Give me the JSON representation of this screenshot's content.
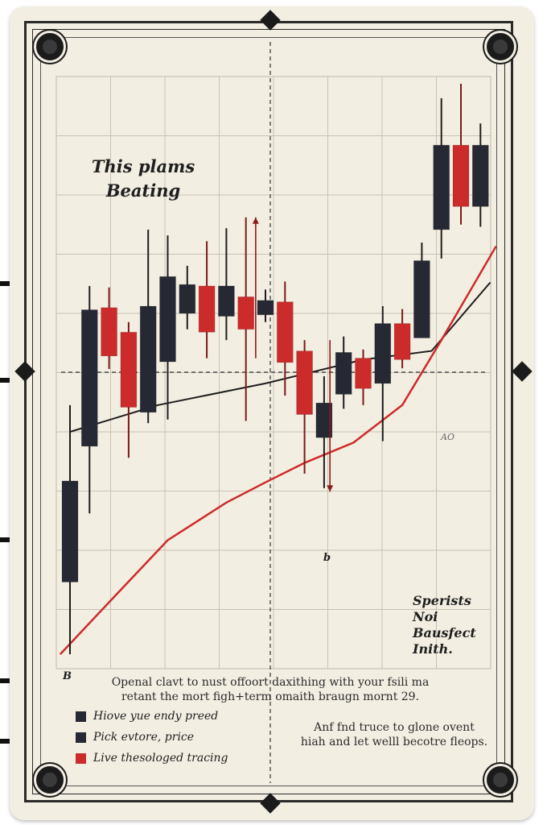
{
  "chart_data": {
    "type": "candlestick",
    "title_lines": [
      "This plams",
      "Beating"
    ],
    "candles": [
      {
        "open": 290,
        "close": 430,
        "high": 535,
        "low": 190,
        "color": "dark"
      },
      {
        "open": 478,
        "close": 667,
        "high": 700,
        "low": 385,
        "color": "dark"
      },
      {
        "open": 670,
        "close": 603,
        "high": 698,
        "low": 585,
        "color": "red"
      },
      {
        "open": 636,
        "close": 532,
        "high": 650,
        "low": 462,
        "color": "red"
      },
      {
        "open": 525,
        "close": 672,
        "high": 778,
        "low": 510,
        "color": "dark"
      },
      {
        "open": 595,
        "close": 713,
        "high": 770,
        "low": 515,
        "color": "dark"
      },
      {
        "open": 702,
        "close": 662,
        "high": 728,
        "low": 640,
        "color": "dark"
      },
      {
        "open": 700,
        "close": 636,
        "high": 762,
        "low": 600,
        "color": "red"
      },
      {
        "open": 658,
        "close": 700,
        "high": 780,
        "low": 625,
        "color": "dark"
      },
      {
        "open": 685,
        "close": 640,
        "high": 795,
        "low": 513,
        "color": "red"
      },
      {
        "open": 660,
        "close": 680,
        "high": 695,
        "low": 650,
        "color": "dark"
      },
      {
        "open": 678,
        "close": 594,
        "high": 706,
        "low": 548,
        "color": "red"
      },
      {
        "open": 610,
        "close": 522,
        "high": 625,
        "low": 440,
        "color": "red"
      },
      {
        "open": 490,
        "close": 538,
        "high": 575,
        "low": 420,
        "color": "dark"
      },
      {
        "open": 550,
        "close": 608,
        "high": 630,
        "low": 530,
        "color": "dark"
      },
      {
        "open": 600,
        "close": 558,
        "high": 612,
        "low": 535,
        "color": "red"
      },
      {
        "open": 565,
        "close": 648,
        "high": 672,
        "low": 485,
        "color": "dark"
      },
      {
        "open": 648,
        "close": 598,
        "high": 668,
        "low": 586,
        "color": "red"
      },
      {
        "open": 628,
        "close": 735,
        "high": 760,
        "low": 628,
        "color": "dark"
      },
      {
        "open": 778,
        "close": 895,
        "high": 960,
        "low": 738,
        "color": "dark"
      },
      {
        "open": 895,
        "close": 810,
        "high": 980,
        "low": 785,
        "color": "red"
      },
      {
        "open": 895,
        "close": 810,
        "high": 925,
        "low": 782,
        "color": "dark"
      }
    ],
    "red_line": [
      {
        "i": -0.5,
        "v": 190
      },
      {
        "i": 2,
        "v": 262
      },
      {
        "i": 5,
        "v": 348
      },
      {
        "i": 8,
        "v": 400
      },
      {
        "i": 10,
        "v": 428
      },
      {
        "i": 12,
        "v": 455
      },
      {
        "i": 14.5,
        "v": 483
      },
      {
        "i": 17,
        "v": 535
      },
      {
        "i": 19,
        "v": 625
      },
      {
        "i": 21.8,
        "v": 755
      }
    ],
    "black_line": [
      {
        "i": 0,
        "v": 498
      },
      {
        "i": 4.5,
        "v": 535
      },
      {
        "i": 10,
        "v": 565
      },
      {
        "i": 15,
        "v": 598
      },
      {
        "i": 18.5,
        "v": 610
      },
      {
        "i": 21.5,
        "v": 705
      }
    ],
    "ylim": [
      170,
      990
    ],
    "arrows": [
      {
        "i": 9.5,
        "from": 600,
        "to": 795
      },
      {
        "i": 13.3,
        "from": 625,
        "to": 415
      }
    ],
    "labels": {
      "left_axis": "B",
      "marker": "b",
      "small": "AO"
    }
  },
  "notes": {
    "right": [
      "Sperists",
      "Noi",
      "Bausfect",
      "Inith."
    ],
    "bottom_right": [
      "Anf  fnd truce to glone ovent",
      "hiah and let welll becotre fleops."
    ]
  },
  "caption": [
    "Openal clavt to nust offoort  daxithing with your fsili ma",
    "retant the mort figh+term omaith braugn mornt 29."
  ],
  "legend": [
    {
      "label": "Hiove yue endy preed",
      "color": "#262833"
    },
    {
      "label": "Pick evtore, price",
      "color": "#262833"
    },
    {
      "label": "Live thesologed tracing",
      "color": "#cc2b2b"
    }
  ],
  "colors": {
    "dark": "#262833",
    "red": "#cc2b2b",
    "paper": "#f3eee2",
    "grid": "#c9c3b6"
  }
}
